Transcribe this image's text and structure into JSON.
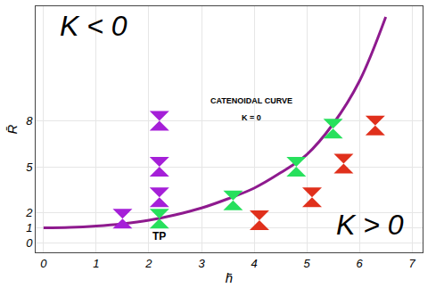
{
  "chart_data": {
    "type": "line",
    "x_label": "h̄",
    "y_label": "R̄",
    "xlim": [
      -0.15,
      7.2
    ],
    "ylim": [
      -0.6,
      15.5
    ],
    "xticks": [
      0,
      1,
      2,
      3,
      4,
      5,
      6,
      7
    ],
    "yticks": [
      0,
      1,
      2,
      5,
      8
    ],
    "grid": true,
    "series": [
      {
        "type": "line",
        "color": "#8e1a8e",
        "line_style": "solid",
        "x": [
          0,
          0.5,
          1,
          1.5,
          2,
          2.5,
          3,
          3.5,
          4,
          4.5,
          5,
          5.5,
          6,
          6.5
        ],
        "values": [
          1,
          1.03,
          1.12,
          1.27,
          1.5,
          1.85,
          2.3,
          2.9,
          3.6,
          4.6,
          5.8,
          7.8,
          10.6,
          14.8
        ]
      },
      {
        "type": "scatter",
        "color": "#a51fd8",
        "marker": "hourglass",
        "x": [
          1.5,
          2.2,
          2.2,
          2.2
        ],
        "values": [
          1.6,
          3,
          5,
          8
        ]
      },
      {
        "type": "scatter",
        "color": "#27e05c",
        "marker": "hourglass",
        "x": [
          2.2,
          3.6,
          4.8,
          5.5
        ],
        "values": [
          1.6,
          2.8,
          5,
          7.5
        ]
      },
      {
        "type": "scatter",
        "color": "#e0301c",
        "marker": "hourglass",
        "x": [
          4.1,
          5.1,
          5.7,
          6.3
        ],
        "values": [
          1.5,
          3,
          5.2,
          7.7
        ]
      }
    ],
    "annotations": [
      {
        "text": "K < 0",
        "x": 0.95,
        "y": 14.2
      },
      {
        "text": "K > 0",
        "x": 6.2,
        "y": 1.2
      },
      {
        "text": "CATENOIDAL CURVE",
        "x": 3.95,
        "y": 9.3
      },
      {
        "text": "K = 0",
        "x": 3.95,
        "y": 8.2
      },
      {
        "text": "TP",
        "x": 2.2,
        "y": 0.45
      }
    ]
  }
}
